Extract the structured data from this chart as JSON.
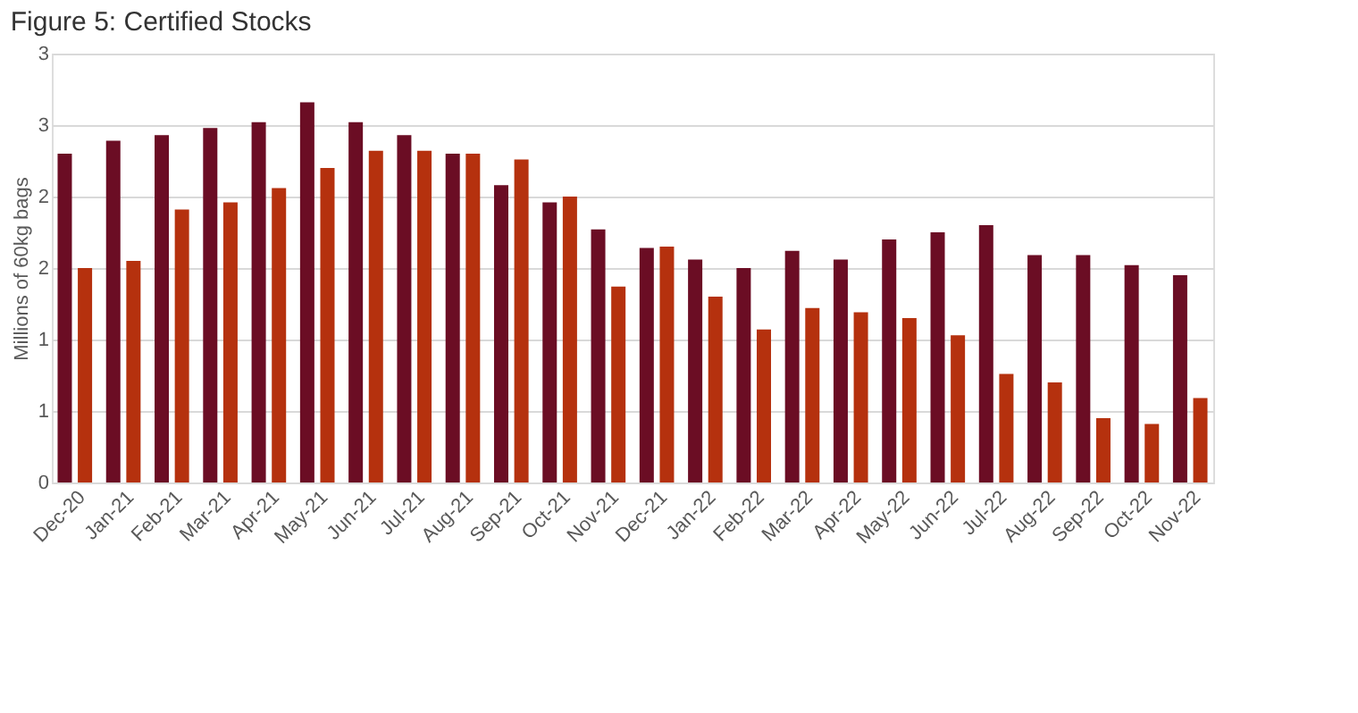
{
  "chart_data": {
    "type": "bar",
    "title": "Figure 5: Certified Stocks",
    "ylabel": "Millions of 60kg bags",
    "categories": [
      "Dec-20",
      "Jan-21",
      "Feb-21",
      "Mar-21",
      "Apr-21",
      "May-21",
      "Jun-21",
      "Jul-21",
      "Aug-21",
      "Sep-21",
      "Oct-21",
      "Nov-21",
      "Dec-21",
      "Jan-22",
      "Feb-22",
      "Mar-22",
      "Apr-22",
      "May-22",
      "Jun-22",
      "Jul-22",
      "Aug-22",
      "Sep-22",
      "Oct-22",
      "Nov-22"
    ],
    "series": [
      {
        "color": "#6b0d24",
        "values": [
          2.3,
          2.39,
          2.43,
          2.48,
          2.52,
          2.66,
          2.52,
          2.43,
          2.3,
          2.08,
          1.96,
          1.77,
          1.64,
          1.56,
          1.5,
          1.62,
          1.56,
          1.7,
          1.75,
          1.8,
          1.59,
          1.59,
          1.52,
          1.45
        ]
      },
      {
        "color": "#b5310e",
        "values": [
          1.5,
          1.55,
          1.91,
          1.96,
          2.06,
          2.2,
          2.32,
          2.32,
          2.3,
          2.26,
          2.0,
          1.37,
          1.65,
          1.3,
          1.07,
          1.22,
          1.19,
          1.15,
          1.03,
          0.76,
          0.7,
          0.45,
          0.41,
          0.59
        ]
      }
    ],
    "ylim": [
      0,
      3
    ],
    "yticks": [
      0,
      {
        "value": 0.5,
        "label": "1"
      },
      1,
      {
        "value": 1.5,
        "label": "2"
      },
      2,
      {
        "value": 2.5,
        "label": "3"
      },
      3
    ],
    "grid": "y",
    "legend": false
  }
}
